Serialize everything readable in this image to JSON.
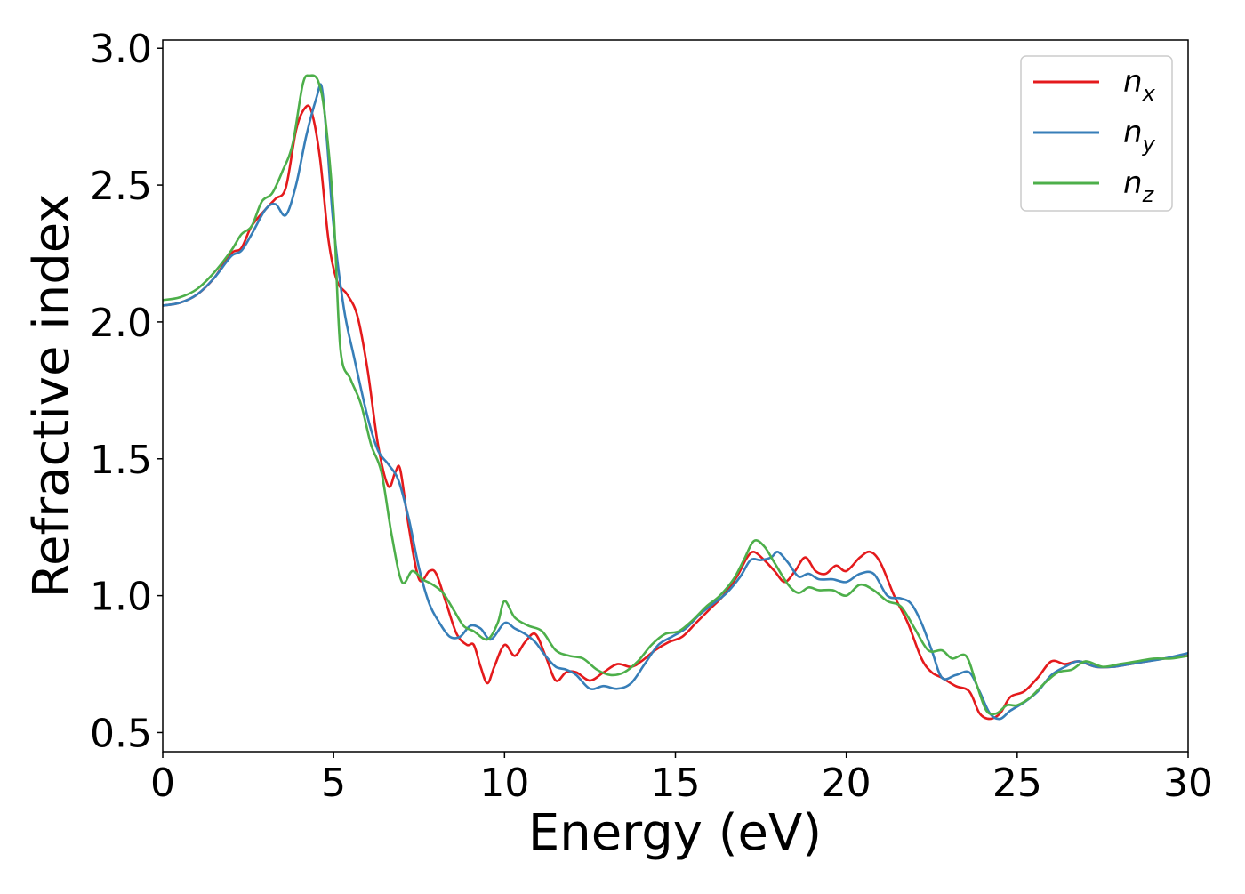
{
  "chart_data": {
    "type": "line",
    "title": "",
    "xlabel": "Energy (eV)",
    "ylabel": "Refractive index",
    "xlim": [
      0,
      30
    ],
    "ylim": [
      0.43,
      3.03
    ],
    "xticks": [
      0,
      5,
      10,
      15,
      20,
      25,
      30
    ],
    "xtick_labels": [
      "0",
      "5",
      "10",
      "15",
      "20",
      "25",
      "30"
    ],
    "yticks": [
      0.5,
      1.0,
      1.5,
      2.0,
      2.5,
      3.0
    ],
    "ytick_labels": [
      "0.5",
      "1.0",
      "1.5",
      "2.0",
      "2.5",
      "3.0"
    ],
    "grid": false,
    "legend_position": "top-right",
    "series": [
      {
        "name": "nx",
        "legend_base": "n",
        "legend_sub": "x",
        "color": "#e41a1c",
        "points": [
          [
            0,
            2.06
          ],
          [
            0.5,
            2.07
          ],
          [
            1,
            2.1
          ],
          [
            1.5,
            2.16
          ],
          [
            2,
            2.25
          ],
          [
            2.3,
            2.27
          ],
          [
            2.6,
            2.35
          ],
          [
            3,
            2.41
          ],
          [
            3.3,
            2.45
          ],
          [
            3.6,
            2.49
          ],
          [
            3.9,
            2.7
          ],
          [
            4.15,
            2.78
          ],
          [
            4.35,
            2.77
          ],
          [
            4.6,
            2.6
          ],
          [
            4.85,
            2.3
          ],
          [
            5.1,
            2.15
          ],
          [
            5.4,
            2.1
          ],
          [
            5.7,
            2.02
          ],
          [
            6.0,
            1.82
          ],
          [
            6.3,
            1.55
          ],
          [
            6.6,
            1.4
          ],
          [
            6.8,
            1.45
          ],
          [
            6.95,
            1.46
          ],
          [
            7.2,
            1.25
          ],
          [
            7.5,
            1.06
          ],
          [
            7.8,
            1.09
          ],
          [
            8.0,
            1.08
          ],
          [
            8.3,
            0.97
          ],
          [
            8.6,
            0.86
          ],
          [
            8.9,
            0.82
          ],
          [
            9.1,
            0.82
          ],
          [
            9.3,
            0.74
          ],
          [
            9.5,
            0.68
          ],
          [
            9.7,
            0.74
          ],
          [
            10.0,
            0.82
          ],
          [
            10.3,
            0.78
          ],
          [
            10.6,
            0.83
          ],
          [
            10.9,
            0.86
          ],
          [
            11.2,
            0.78
          ],
          [
            11.5,
            0.69
          ],
          [
            11.8,
            0.72
          ],
          [
            12.1,
            0.72
          ],
          [
            12.5,
            0.69
          ],
          [
            12.9,
            0.72
          ],
          [
            13.3,
            0.75
          ],
          [
            13.7,
            0.74
          ],
          [
            14.0,
            0.76
          ],
          [
            14.4,
            0.8
          ],
          [
            14.8,
            0.83
          ],
          [
            15.2,
            0.85
          ],
          [
            15.6,
            0.9
          ],
          [
            16.0,
            0.95
          ],
          [
            16.4,
            1.0
          ],
          [
            16.8,
            1.07
          ],
          [
            17.1,
            1.14
          ],
          [
            17.3,
            1.16
          ],
          [
            17.6,
            1.13
          ],
          [
            17.9,
            1.09
          ],
          [
            18.2,
            1.05
          ],
          [
            18.5,
            1.09
          ],
          [
            18.8,
            1.14
          ],
          [
            19.1,
            1.09
          ],
          [
            19.4,
            1.08
          ],
          [
            19.7,
            1.11
          ],
          [
            20.0,
            1.09
          ],
          [
            20.4,
            1.14
          ],
          [
            20.7,
            1.16
          ],
          [
            21.0,
            1.12
          ],
          [
            21.4,
            1.0
          ],
          [
            21.8,
            0.9
          ],
          [
            22.2,
            0.77
          ],
          [
            22.5,
            0.72
          ],
          [
            22.8,
            0.7
          ],
          [
            23.2,
            0.67
          ],
          [
            23.6,
            0.65
          ],
          [
            23.9,
            0.57
          ],
          [
            24.2,
            0.55
          ],
          [
            24.5,
            0.57
          ],
          [
            24.8,
            0.63
          ],
          [
            25.2,
            0.65
          ],
          [
            25.6,
            0.7
          ],
          [
            26.0,
            0.76
          ],
          [
            26.4,
            0.75
          ],
          [
            26.8,
            0.76
          ],
          [
            27.3,
            0.74
          ],
          [
            27.8,
            0.74
          ],
          [
            28.3,
            0.75
          ],
          [
            28.8,
            0.76
          ],
          [
            29.3,
            0.77
          ],
          [
            30,
            0.78
          ]
        ]
      },
      {
        "name": "ny",
        "legend_base": "n",
        "legend_sub": "y",
        "color": "#377eb8",
        "points": [
          [
            0,
            2.06
          ],
          [
            0.5,
            2.07
          ],
          [
            1,
            2.1
          ],
          [
            1.5,
            2.16
          ],
          [
            2,
            2.24
          ],
          [
            2.3,
            2.26
          ],
          [
            2.6,
            2.32
          ],
          [
            3,
            2.41
          ],
          [
            3.3,
            2.43
          ],
          [
            3.6,
            2.39
          ],
          [
            3.9,
            2.5
          ],
          [
            4.2,
            2.68
          ],
          [
            4.5,
            2.82
          ],
          [
            4.65,
            2.86
          ],
          [
            4.8,
            2.67
          ],
          [
            5.0,
            2.35
          ],
          [
            5.3,
            2.05
          ],
          [
            5.6,
            1.87
          ],
          [
            6.0,
            1.65
          ],
          [
            6.3,
            1.53
          ],
          [
            6.6,
            1.48
          ],
          [
            6.9,
            1.42
          ],
          [
            7.2,
            1.28
          ],
          [
            7.5,
            1.1
          ],
          [
            7.8,
            0.97
          ],
          [
            8.1,
            0.9
          ],
          [
            8.4,
            0.85
          ],
          [
            8.7,
            0.85
          ],
          [
            9.0,
            0.89
          ],
          [
            9.3,
            0.88
          ],
          [
            9.6,
            0.84
          ],
          [
            10.0,
            0.9
          ],
          [
            10.3,
            0.88
          ],
          [
            10.6,
            0.86
          ],
          [
            10.9,
            0.83
          ],
          [
            11.2,
            0.78
          ],
          [
            11.5,
            0.74
          ],
          [
            11.8,
            0.73
          ],
          [
            12.1,
            0.71
          ],
          [
            12.5,
            0.66
          ],
          [
            12.9,
            0.67
          ],
          [
            13.3,
            0.66
          ],
          [
            13.7,
            0.68
          ],
          [
            14.1,
            0.75
          ],
          [
            14.5,
            0.82
          ],
          [
            14.9,
            0.85
          ],
          [
            15.3,
            0.88
          ],
          [
            15.7,
            0.93
          ],
          [
            16.1,
            0.97
          ],
          [
            16.5,
            1.01
          ],
          [
            16.9,
            1.07
          ],
          [
            17.2,
            1.13
          ],
          [
            17.5,
            1.13
          ],
          [
            17.8,
            1.14
          ],
          [
            18.0,
            1.16
          ],
          [
            18.3,
            1.12
          ],
          [
            18.6,
            1.07
          ],
          [
            18.9,
            1.08
          ],
          [
            19.2,
            1.06
          ],
          [
            19.6,
            1.06
          ],
          [
            20.0,
            1.05
          ],
          [
            20.4,
            1.08
          ],
          [
            20.8,
            1.08
          ],
          [
            21.2,
            1.0
          ],
          [
            21.6,
            0.99
          ],
          [
            21.9,
            0.97
          ],
          [
            22.2,
            0.9
          ],
          [
            22.5,
            0.8
          ],
          [
            22.8,
            0.7
          ],
          [
            23.2,
            0.71
          ],
          [
            23.6,
            0.72
          ],
          [
            23.9,
            0.65
          ],
          [
            24.2,
            0.57
          ],
          [
            24.5,
            0.55
          ],
          [
            24.8,
            0.58
          ],
          [
            25.2,
            0.61
          ],
          [
            25.6,
            0.65
          ],
          [
            26.0,
            0.71
          ],
          [
            26.4,
            0.74
          ],
          [
            26.8,
            0.76
          ],
          [
            27.3,
            0.74
          ],
          [
            27.8,
            0.74
          ],
          [
            28.3,
            0.75
          ],
          [
            28.8,
            0.76
          ],
          [
            29.3,
            0.77
          ],
          [
            30,
            0.79
          ]
        ]
      },
      {
        "name": "nz",
        "legend_base": "n",
        "legend_sub": "z",
        "color": "#4daf4a",
        "points": [
          [
            0,
            2.08
          ],
          [
            0.5,
            2.09
          ],
          [
            1,
            2.12
          ],
          [
            1.5,
            2.18
          ],
          [
            2,
            2.26
          ],
          [
            2.3,
            2.32
          ],
          [
            2.6,
            2.35
          ],
          [
            2.9,
            2.44
          ],
          [
            3.2,
            2.47
          ],
          [
            3.5,
            2.55
          ],
          [
            3.8,
            2.65
          ],
          [
            4.1,
            2.87
          ],
          [
            4.3,
            2.9
          ],
          [
            4.55,
            2.88
          ],
          [
            4.75,
            2.75
          ],
          [
            5.0,
            2.4
          ],
          [
            5.2,
            1.9
          ],
          [
            5.5,
            1.79
          ],
          [
            5.8,
            1.7
          ],
          [
            6.1,
            1.55
          ],
          [
            6.4,
            1.45
          ],
          [
            6.7,
            1.22
          ],
          [
            7.0,
            1.05
          ],
          [
            7.3,
            1.09
          ],
          [
            7.6,
            1.06
          ],
          [
            7.9,
            1.04
          ],
          [
            8.2,
            1.01
          ],
          [
            8.5,
            0.95
          ],
          [
            8.8,
            0.89
          ],
          [
            9.1,
            0.87
          ],
          [
            9.5,
            0.84
          ],
          [
            9.8,
            0.9
          ],
          [
            10.0,
            0.98
          ],
          [
            10.3,
            0.92
          ],
          [
            10.7,
            0.89
          ],
          [
            11.1,
            0.87
          ],
          [
            11.5,
            0.8
          ],
          [
            11.9,
            0.78
          ],
          [
            12.3,
            0.77
          ],
          [
            12.7,
            0.73
          ],
          [
            13.1,
            0.71
          ],
          [
            13.5,
            0.72
          ],
          [
            13.9,
            0.76
          ],
          [
            14.3,
            0.82
          ],
          [
            14.7,
            0.86
          ],
          [
            15.1,
            0.87
          ],
          [
            15.5,
            0.91
          ],
          [
            15.9,
            0.96
          ],
          [
            16.3,
            1.0
          ],
          [
            16.7,
            1.06
          ],
          [
            17.0,
            1.13
          ],
          [
            17.3,
            1.2
          ],
          [
            17.6,
            1.18
          ],
          [
            17.9,
            1.12
          ],
          [
            18.3,
            1.04
          ],
          [
            18.6,
            1.01
          ],
          [
            18.9,
            1.03
          ],
          [
            19.2,
            1.02
          ],
          [
            19.6,
            1.02
          ],
          [
            20.0,
            1.0
          ],
          [
            20.4,
            1.04
          ],
          [
            20.8,
            1.02
          ],
          [
            21.2,
            0.98
          ],
          [
            21.6,
            0.96
          ],
          [
            22.0,
            0.88
          ],
          [
            22.4,
            0.8
          ],
          [
            22.8,
            0.8
          ],
          [
            23.1,
            0.77
          ],
          [
            23.5,
            0.78
          ],
          [
            23.8,
            0.68
          ],
          [
            24.1,
            0.58
          ],
          [
            24.4,
            0.57
          ],
          [
            24.7,
            0.6
          ],
          [
            25.0,
            0.6
          ],
          [
            25.4,
            0.63
          ],
          [
            25.8,
            0.68
          ],
          [
            26.2,
            0.72
          ],
          [
            26.6,
            0.73
          ],
          [
            27.0,
            0.76
          ],
          [
            27.5,
            0.74
          ],
          [
            28.0,
            0.75
          ],
          [
            28.5,
            0.76
          ],
          [
            29.0,
            0.77
          ],
          [
            29.5,
            0.77
          ],
          [
            30,
            0.78
          ]
        ]
      }
    ]
  }
}
